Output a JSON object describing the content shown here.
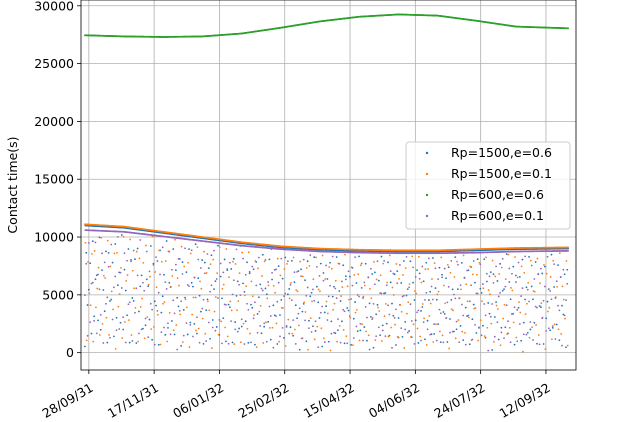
{
  "chart_data": {
    "type": "scatter",
    "title": "",
    "xlabel": "",
    "ylabel": "Contact time(s)",
    "x_date_range": [
      "2031-09-22",
      "2032-10-05"
    ],
    "x_ticks": [
      {
        "date": "2031-09-28",
        "label": "28/09/31"
      },
      {
        "date": "2031-11-17",
        "label": "17/11/31"
      },
      {
        "date": "2032-01-06",
        "label": "06/01/32"
      },
      {
        "date": "2032-02-25",
        "label": "25/02/32"
      },
      {
        "date": "2032-04-15",
        "label": "15/04/32"
      },
      {
        "date": "2032-06-04",
        "label": "04/06/32"
      },
      {
        "date": "2032-07-24",
        "label": "24/07/32"
      },
      {
        "date": "2032-09-12",
        "label": "12/09/32"
      }
    ],
    "ylim": [
      -1500,
      30500
    ],
    "y_ticks": [
      0,
      5000,
      10000,
      15000,
      20000,
      25000,
      30000
    ],
    "grid": true,
    "legend_position": "right",
    "series": [
      {
        "name": "Rp=1500,e=0.6",
        "color": "#1f77b4",
        "envelope": [
          {
            "date": "2031-09-25",
            "value": 11000
          },
          {
            "date": "2031-10-25",
            "value": 10800
          },
          {
            "date": "2031-11-24",
            "value": 10350
          },
          {
            "date": "2031-12-24",
            "value": 9900
          },
          {
            "date": "2032-01-23",
            "value": 9450
          },
          {
            "date": "2032-02-22",
            "value": 9100
          },
          {
            "date": "2032-03-23",
            "value": 8900
          },
          {
            "date": "2032-04-22",
            "value": 8800
          },
          {
            "date": "2032-05-22",
            "value": 8750
          },
          {
            "date": "2032-06-21",
            "value": 8750
          },
          {
            "date": "2032-07-21",
            "value": 8850
          },
          {
            "date": "2032-08-20",
            "value": 8950
          },
          {
            "date": "2032-09-29",
            "value": 9000
          }
        ],
        "value_range": [
          0,
          11000
        ]
      },
      {
        "name": "Rp=1500,e=0.1",
        "color": "#ff7f0e",
        "envelope": [
          {
            "date": "2031-09-25",
            "value": 11100
          },
          {
            "date": "2031-10-25",
            "value": 10900
          },
          {
            "date": "2031-11-24",
            "value": 10450
          },
          {
            "date": "2031-12-24",
            "value": 10000
          },
          {
            "date": "2032-01-23",
            "value": 9550
          },
          {
            "date": "2032-02-22",
            "value": 9200
          },
          {
            "date": "2032-03-23",
            "value": 9000
          },
          {
            "date": "2032-04-22",
            "value": 8900
          },
          {
            "date": "2032-05-22",
            "value": 8850
          },
          {
            "date": "2032-06-21",
            "value": 8850
          },
          {
            "date": "2032-07-21",
            "value": 8950
          },
          {
            "date": "2032-08-20",
            "value": 9050
          },
          {
            "date": "2032-09-29",
            "value": 9100
          }
        ],
        "value_range": [
          0,
          11100
        ]
      },
      {
        "name": "Rp=600,e=0.6",
        "color": "#2ca02c",
        "points": [
          {
            "date": "2031-09-25",
            "value": 27450
          },
          {
            "date": "2031-10-25",
            "value": 27350
          },
          {
            "date": "2031-11-24",
            "value": 27300
          },
          {
            "date": "2031-12-24",
            "value": 27350
          },
          {
            "date": "2032-01-23",
            "value": 27600
          },
          {
            "date": "2032-02-22",
            "value": 28100
          },
          {
            "date": "2032-03-23",
            "value": 28650
          },
          {
            "date": "2032-04-22",
            "value": 29050
          },
          {
            "date": "2032-05-22",
            "value": 29250
          },
          {
            "date": "2032-06-21",
            "value": 29150
          },
          {
            "date": "2032-07-21",
            "value": 28700
          },
          {
            "date": "2032-08-20",
            "value": 28200
          },
          {
            "date": "2032-09-29",
            "value": 28050
          }
        ]
      },
      {
        "name": "Rp=600,e=0.1",
        "color": "#9467bd",
        "envelope": [
          {
            "date": "2031-09-25",
            "value": 10600
          },
          {
            "date": "2031-10-25",
            "value": 10450
          },
          {
            "date": "2031-11-24",
            "value": 10050
          },
          {
            "date": "2031-12-24",
            "value": 9650
          },
          {
            "date": "2032-01-23",
            "value": 9250
          },
          {
            "date": "2032-02-22",
            "value": 8950
          },
          {
            "date": "2032-03-23",
            "value": 8750
          },
          {
            "date": "2032-04-22",
            "value": 8650
          },
          {
            "date": "2032-05-22",
            "value": 8600
          },
          {
            "date": "2032-06-21",
            "value": 8600
          },
          {
            "date": "2032-07-21",
            "value": 8650
          },
          {
            "date": "2032-08-20",
            "value": 8750
          },
          {
            "date": "2032-09-29",
            "value": 8800
          }
        ],
        "value_range": [
          0,
          10600
        ]
      }
    ]
  }
}
